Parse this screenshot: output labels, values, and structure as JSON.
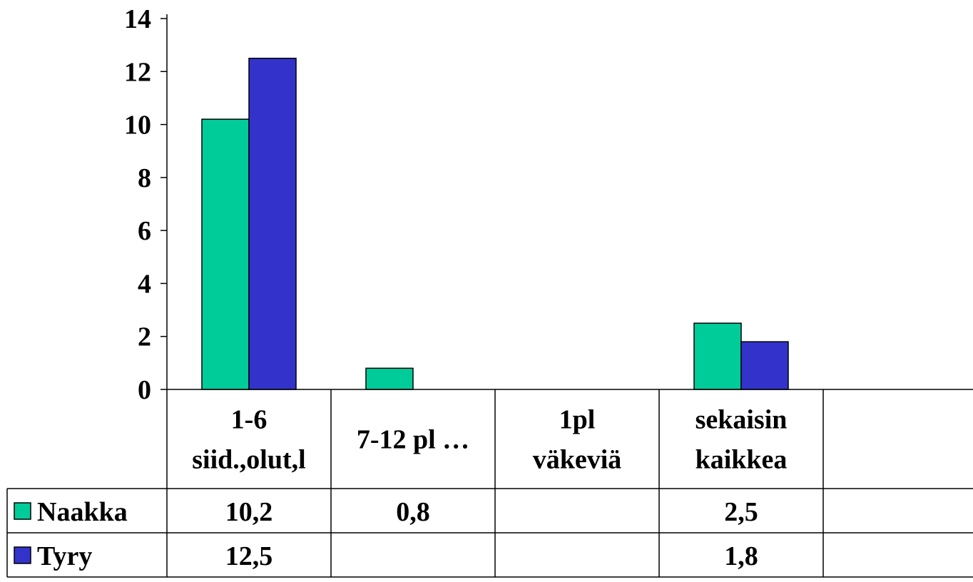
{
  "chart_data": {
    "type": "bar",
    "categories": [
      [
        "1-6",
        "siid.,olut,l"
      ],
      [
        "7-12 pl …"
      ],
      [
        "1pl",
        "väkeviä"
      ],
      [
        "sekaisin",
        "kaikkea"
      ],
      [
        ""
      ]
    ],
    "series": [
      {
        "name": "Naakka",
        "values": [
          10.2,
          0.8,
          null,
          2.5,
          null
        ],
        "labels": [
          "10,2",
          "0,8",
          "",
          "2,5",
          ""
        ],
        "color": "#00CC99"
      },
      {
        "name": "Tyry",
        "values": [
          12.5,
          null,
          null,
          1.8,
          null
        ],
        "labels": [
          "12,5",
          "",
          "",
          "1,8",
          ""
        ],
        "color": "#3333CC"
      }
    ],
    "yticks": [
      "0",
      "2",
      "4",
      "6",
      "8",
      "10",
      "12",
      "14"
    ],
    "ylim": [
      0,
      14
    ],
    "title": "",
    "xlabel": "",
    "ylabel": "",
    "legend": "data-table",
    "grid": false
  }
}
